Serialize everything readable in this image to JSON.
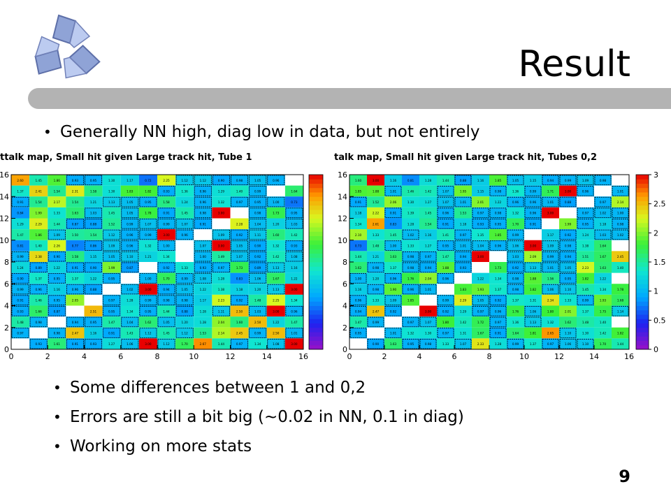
{
  "slide": {
    "title": "Result",
    "bullet_main": "Generally NN high, diag low in data, but not entirely",
    "bullets": [
      "Some differences between 1 and 0,2",
      "Errors are still a bit big (~0.02 in NN, 0.1 in diag)",
      "Working on more stats"
    ],
    "page_number": "9",
    "logo_icon": "triskelion-logo-icon"
  },
  "chart_data": [
    {
      "type": "heatmap",
      "title": "ttalk map, Small hit given Large track hit, Tube 1",
      "x_ticks": [
        "0",
        "2",
        "4",
        "6",
        "8",
        "10",
        "12",
        "14",
        "16"
      ],
      "y_ticks": [
        "0",
        "2",
        "4",
        "6",
        "8",
        "10",
        "12",
        "14",
        "16"
      ],
      "xlim": [
        0,
        16
      ],
      "ylim": [
        0,
        16
      ],
      "colorbar": "rainbow",
      "rows_top_to_bottom": [
        [
          2.6,
          1.45,
          1.86,
          0.93,
          0.95,
          1.3,
          1.17,
          0.72,
          2.25,
          1.12,
          1.12,
          0.9,
          0.98,
          1.05,
          0.96,
          null
        ],
        [
          1.37,
          2.41,
          1.54,
          2.31,
          1.58,
          1.3,
          1.83,
          1.82,
          0.93,
          1.36,
          0.96,
          1.29,
          1.4,
          0.99,
          null,
          1.64
        ],
        [
          0.91,
          1.54,
          2.17,
          1.54,
          1.21,
          1.13,
          1.05,
          0.95,
          1.58,
          1.24,
          0.96,
          1.32,
          0.97,
          0.95,
          1.0,
          0.73
        ],
        [
          0.84,
          1.99,
          1.33,
          1.63,
          1.03,
          1.45,
          1.05,
          1.78,
          0.91,
          1.45,
          0.98,
          3.0,
          null,
          0.98,
          1.73,
          0.95
        ],
        [
          1.29,
          2.29,
          1.44,
          0.87,
          0.88,
          1.52,
          0.99,
          1.07,
          0.99,
          1.07,
          0.91,
          null,
          2.28,
          1.04,
          1.2,
          1.03
        ],
        [
          1.47,
          1.86,
          1.09,
          1.5,
          1.54,
          1.12,
          0.96,
          0.99,
          3.0,
          0.96,
          null,
          1.09,
          0.92,
          1.11,
          1.6,
          1.42
        ],
        [
          0.81,
          1.4,
          2.26,
          0.77,
          0.86,
          1.09,
          0.96,
          1.32,
          1.0,
          null,
          1.07,
          3.0,
          1.05,
          0.9,
          1.32,
          0.93
        ],
        [
          0.99,
          2.38,
          0.9,
          1.58,
          1.15,
          1.05,
          1.1,
          1.21,
          1.34,
          null,
          1.0,
          1.49,
          1.07,
          0.92,
          1.42,
          1.08
        ],
        [
          1.24,
          0.89,
          1.22,
          0.91,
          0.9,
          1.99,
          0.87,
          null,
          0.92,
          1.33,
          0.93,
          0.97,
          1.73,
          0.89,
          1.13,
          1.16
        ],
        [
          0.9,
          1.37,
          0.95,
          1.37,
          1.22,
          0.95,
          null,
          1.0,
          1.7,
          0.99,
          1.08,
          1.28,
          0.83,
          1.06,
          1.67,
          1.22
        ],
        [
          0.99,
          0.96,
          1.16,
          0.96,
          0.88,
          null,
          1.02,
          3.0,
          0.94,
          1.05,
          1.22,
          1.38,
          1.18,
          1.2,
          1.13,
          3.0
        ],
        [
          0.91,
          1.46,
          0.95,
          2.05,
          null,
          0.97,
          1.28,
          0.99,
          0.98,
          0.98,
          1.17,
          2.23,
          0.92,
          1.48,
          2.25,
          1.34
        ],
        [
          0.93,
          1.66,
          0.87,
          null,
          2.51,
          0.95,
          1.34,
          0.95,
          1.44,
          0.88,
          1.28,
          1.11,
          2.5,
          1.03,
          3.0,
          0.96
        ],
        [
          1.48,
          0.98,
          null,
          0.94,
          0.95,
          1.47,
          1.04,
          1.62,
          1.05,
          1.2,
          1.28,
          2.04,
          1.6,
          2.5,
          1.22,
          1.47
        ],
        [
          0.97,
          null,
          0.98,
          2.47,
          1.16,
          0.91,
          1.43,
          1.12,
          1.45,
          1.12,
          1.53,
          2.14,
          2.45,
          0.99,
          2.5,
          1.01
        ],
        [
          null,
          0.93,
          1.61,
          0.91,
          0.93,
          1.27,
          1.06,
          3.0,
          1.12,
          1.7,
          2.67,
          1.44,
          0.97,
          1.34,
          1.08,
          3.0
        ]
      ]
    },
    {
      "type": "heatmap",
      "title": "talk map, Small hit given Large track hit, Tubes 0,2",
      "x_ticks": [
        "0",
        "2",
        "4",
        "6",
        "8",
        "10",
        "12",
        "14",
        "16"
      ],
      "y_ticks": [
        "0",
        "2",
        "4",
        "6",
        "8",
        "10",
        "12",
        "14",
        "16"
      ],
      "xlim": [
        0,
        16
      ],
      "ylim": [
        0,
        16
      ],
      "colorbar_ticks": [
        "0",
        "0.5",
        "1",
        "1.5",
        "2",
        "2.5",
        "3"
      ],
      "colorbar_range": [
        0,
        3
      ],
      "rows_top_to_bottom": [
        [
          1.6,
          3.0,
          1.16,
          0.81,
          1.28,
          1.44,
          0.88,
          1.16,
          1.85,
          1.05,
          1.15,
          0.94,
          0.99,
          1.09,
          0.98,
          null
        ],
        [
          1.85,
          1.88,
          1.01,
          1.46,
          1.42,
          1.07,
          1.95,
          1.15,
          0.98,
          1.36,
          0.99,
          1.71,
          3.0,
          0.96,
          null,
          1.01
        ],
        [
          0.91,
          1.52,
          2.06,
          1.3,
          1.27,
          1.07,
          1.01,
          2.01,
          1.22,
          0.96,
          0.96,
          1.01,
          0.88,
          null,
          0.97,
          2.14
        ],
        [
          1.18,
          2.22,
          0.91,
          1.39,
          1.45,
          0.96,
          1.53,
          0.97,
          0.98,
          1.32,
          0.96,
          3.0,
          null,
          0.97,
          1.02,
          1.0
        ],
        [
          1.34,
          2.61,
          0.83,
          1.28,
          1.54,
          0.91,
          1.18,
          0.93,
          0.95,
          1.7,
          0.91,
          null,
          1.99,
          0.95,
          1.18,
          0.98
        ],
        [
          2.1,
          1.33,
          1.45,
          1.02,
          1.16,
          1.41,
          0.97,
          1.35,
          1.85,
          0.99,
          null,
          1.17,
          0.92,
          1.24,
          1.03,
          1.02
        ],
        [
          0.73,
          1.48,
          1.0,
          1.33,
          1.27,
          0.95,
          1.01,
          1.04,
          0.96,
          1.06,
          3.0,
          1.09,
          0.98,
          1.38,
          1.64,
          null
        ],
        [
          1.44,
          1.21,
          1.63,
          0.98,
          0.97,
          1.47,
          0.94,
          3.0,
          null,
          1.03,
          2.09,
          0.99,
          0.94,
          1.51,
          1.67,
          2.45
        ],
        [
          1.62,
          0.98,
          1.37,
          0.98,
          0.94,
          1.88,
          0.93,
          null,
          1.73,
          0.92,
          1.13,
          1.01,
          1.05,
          2.23,
          1.63,
          1.4
        ],
        [
          1.0,
          1.2,
          0.96,
          1.76,
          2.04,
          0.96,
          null,
          1.22,
          1.34,
          0.98,
          1.88,
          1.56,
          0.95,
          1.82,
          1.22,
          null
        ],
        [
          1.16,
          0.98,
          1.9,
          0.96,
          1.01,
          null,
          1.83,
          1.93,
          1.37,
          0.98,
          1.82,
          1.06,
          1.1,
          1.45,
          1.34,
          1.78
        ],
        [
          0.96,
          1.33,
          1.09,
          1.85,
          null,
          0.99,
          2.29,
          1.05,
          0.92,
          1.37,
          1.31,
          2.34,
          1.33,
          0.99,
          1.93,
          1.68
        ],
        [
          0.94,
          2.47,
          0.92,
          null,
          3.0,
          0.92,
          1.29,
          0.97,
          0.96,
          1.76,
          1.06,
          1.8,
          2.01,
          1.37,
          1.75,
          1.14
        ],
        [
          1.47,
          0.99,
          null,
          0.97,
          1.07,
          1.8,
          1.42,
          1.72,
          0.97,
          1.36,
          1.13,
          1.32,
          1.62,
          1.48,
          1.4,
          null
        ],
        [
          0.95,
          null,
          1.01,
          1.32,
          1.3,
          0.97,
          1.31,
          1.67,
          0.91,
          1.64,
          1.81,
          2.65,
          1.1,
          1.3,
          1.42,
          1.82
        ],
        [
          null,
          0.9,
          1.63,
          0.95,
          0.98,
          1.33,
          1.07,
          2.33,
          1.28,
          0.99,
          1.37,
          0.97,
          1.06,
          1.1,
          1.7,
          1.44
        ]
      ]
    }
  ]
}
